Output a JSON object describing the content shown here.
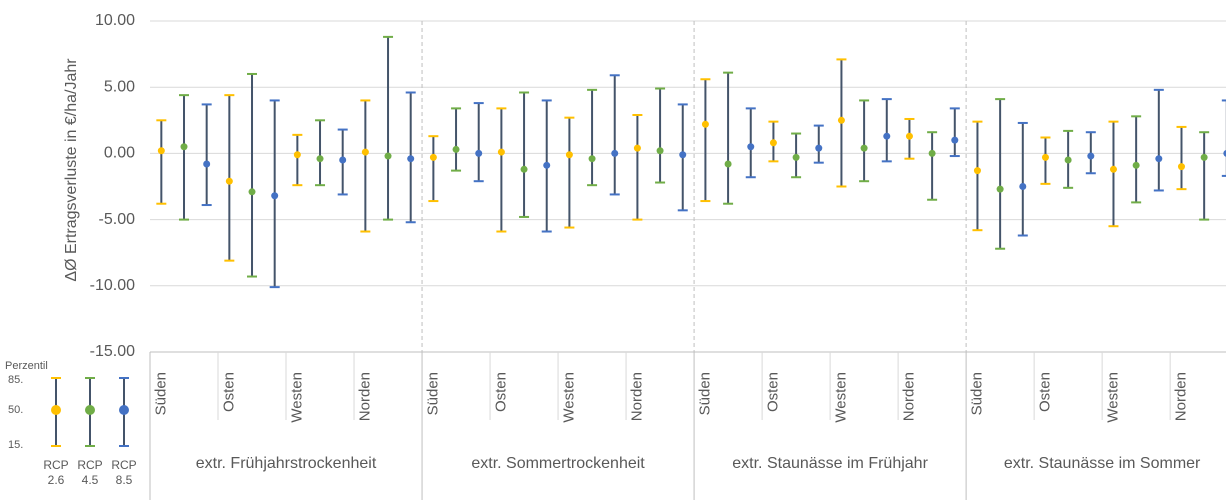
{
  "chart_data": {
    "type": "errorbar",
    "y_label": "ΔØ Ertragsverluste in €/ha/Jahr",
    "groups": [
      "extr. Frühjahrstrockenheit",
      "extr. Sommertrockenheit",
      "extr. Staunässe im Frühjahr",
      "extr. Staunässe im Sommer"
    ],
    "regions": [
      "Süden",
      "Osten",
      "Westen",
      "Norden"
    ],
    "ylim": [
      -15,
      10
    ],
    "yticks": [
      {
        "value": -15,
        "label": "-15.00"
      },
      {
        "value": -10,
        "label": "-10.00"
      },
      {
        "value": -5,
        "label": "-5.00"
      },
      {
        "value": 0,
        "label": "0.00"
      },
      {
        "value": 5,
        "label": "5.00"
      },
      {
        "value": 10,
        "label": "10.00"
      }
    ],
    "grid": true,
    "whisker_color": "#44546a",
    "legend": {
      "title": "Perzentil",
      "levels": [
        "85.",
        "50.",
        "15."
      ]
    },
    "series": [
      {
        "name": "RCP 2.6",
        "color": "#ffc000",
        "values": [
          0.2,
          -2.1,
          -0.1,
          0.1,
          -0.3,
          0.1,
          -0.1,
          0.4,
          2.2,
          0.8,
          2.5,
          1.3,
          -1.3,
          -0.3,
          -1.2,
          -1.0
        ],
        "high": [
          2.5,
          4.4,
          1.4,
          4.0,
          1.3,
          3.4,
          2.7,
          2.9,
          5.6,
          2.4,
          7.1,
          2.6,
          2.4,
          1.2,
          2.4,
          2.0
        ],
        "low": [
          -3.8,
          -8.1,
          -2.4,
          -5.9,
          -3.6,
          -5.9,
          -5.6,
          -5.0,
          -3.6,
          -0.6,
          -2.5,
          -0.4,
          -5.8,
          -2.3,
          -5.5,
          -2.7
        ]
      },
      {
        "name": "RCP 4.5",
        "color": "#70ad47",
        "values": [
          0.5,
          -2.9,
          -0.4,
          -0.2,
          0.3,
          -1.2,
          -0.4,
          0.2,
          -0.8,
          -0.3,
          0.4,
          0.0,
          -2.7,
          -0.5,
          -0.9,
          -0.3
        ],
        "high": [
          4.4,
          6.0,
          2.5,
          8.8,
          3.4,
          4.6,
          4.8,
          4.9,
          6.1,
          1.5,
          4.0,
          1.6,
          4.1,
          1.7,
          2.8,
          1.6
        ],
        "low": [
          -5.0,
          -9.3,
          -2.4,
          -5.0,
          -1.3,
          -4.8,
          -2.4,
          -2.2,
          -3.8,
          -1.8,
          -2.1,
          -3.5,
          -7.2,
          -2.6,
          -3.7,
          -5.0
        ]
      },
      {
        "name": "RCP 8.5",
        "color": "#4472c4",
        "values": [
          -0.8,
          -3.2,
          -0.5,
          -0.4,
          0.0,
          -0.9,
          0.0,
          -0.1,
          0.5,
          0.4,
          1.3,
          1.0,
          -2.5,
          -0.2,
          -0.4,
          0.0
        ],
        "high": [
          3.7,
          4.0,
          1.8,
          4.6,
          3.8,
          4.0,
          5.9,
          3.7,
          3.4,
          2.1,
          4.1,
          3.4,
          2.3,
          1.6,
          4.8,
          4.0
        ],
        "low": [
          -3.9,
          -10.1,
          -3.1,
          -5.2,
          -2.1,
          -5.9,
          -3.1,
          -4.3,
          -1.8,
          -0.7,
          -0.6,
          -0.2,
          -6.2,
          -1.5,
          -2.8,
          -1.7
        ]
      }
    ]
  }
}
